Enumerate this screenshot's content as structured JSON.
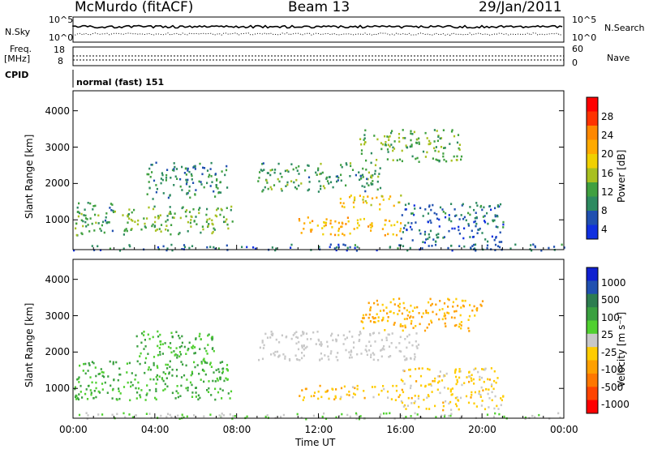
{
  "header": {
    "station": "McMurdo (fitACF)",
    "beam": "Beam 13",
    "date": "29/Jan/2011"
  },
  "side_labels": {
    "nsky": "N.Sky",
    "nsky_ticks": [
      "10^5",
      "10^0"
    ],
    "nsearch": "N.Search",
    "nsearch_ticks": [
      "10^5",
      "10^0"
    ],
    "freq": "Freq.",
    "freq_unit": "[MHz]",
    "freq_ticks": [
      "18",
      "8"
    ],
    "nave": "Nave",
    "nave_ticks": [
      "60",
      "0"
    ],
    "cpid": "CPID",
    "cpid_value": "normal (fast) 151"
  },
  "axes": {
    "y_label": "Slant Range [km]",
    "y_ticks": [
      "4000",
      "3000",
      "2000",
      "1000"
    ],
    "x_label": "Time UT",
    "x_ticks": [
      "00:00",
      "04:00",
      "08:00",
      "12:00",
      "16:00",
      "20:00",
      "00:00"
    ]
  },
  "colorbars": {
    "power": {
      "label": "Power [dB]",
      "ticks": [
        "28",
        "24",
        "20",
        "16",
        "12",
        "8",
        "4"
      ],
      "colors": [
        "#ff0000",
        "#ff3300",
        "#ff8800",
        "#ffaa00",
        "#f0d000",
        "#a8c020",
        "#40a040",
        "#2d8a60",
        "#2050b0",
        "#1030e0"
      ]
    },
    "velocity": {
      "label": "Velocity [m s⁻¹]",
      "ticks": [
        "1000",
        "500",
        "100",
        "25",
        "-25",
        "-100",
        "-500",
        "-1000"
      ],
      "colors": [
        "#1020d0",
        "#2050b0",
        "#2d7d50",
        "#3aa040",
        "#50d030",
        "#c8c8c8",
        "#ffcc00",
        "#ffa000",
        "#ff7700",
        "#ff4400",
        "#ff0000"
      ]
    }
  },
  "chart_data": [
    {
      "type": "heatmap",
      "title": "Power [dB]",
      "xlabel": "Time UT",
      "ylabel": "Slant Range [km]",
      "x_range": [
        "00:00",
        "24:00"
      ],
      "ylim": [
        180,
        4550
      ],
      "color_range": [
        0,
        32
      ],
      "regions": [
        {
          "t0": 0.0,
          "t1": 2.5,
          "r0": 600,
          "r1": 1500,
          "value": 10
        },
        {
          "t0": 2.5,
          "t1": 7.8,
          "r0": 600,
          "r1": 1400,
          "value": 12
        },
        {
          "t0": 3.5,
          "t1": 7.5,
          "r0": 1600,
          "r1": 2600,
          "value": 8
        },
        {
          "t0": 9.0,
          "t1": 15.0,
          "r0": 1800,
          "r1": 2600,
          "value": 10
        },
        {
          "t0": 11.0,
          "t1": 16.0,
          "r0": 600,
          "r1": 1100,
          "value": 20
        },
        {
          "t0": 13.0,
          "t1": 16.0,
          "r0": 1300,
          "r1": 1700,
          "value": 18
        },
        {
          "t0": 14.0,
          "t1": 19.0,
          "r0": 2600,
          "r1": 3500,
          "value": 12
        },
        {
          "t0": 16.0,
          "t1": 21.0,
          "r0": 400,
          "r1": 1500,
          "value": 6
        },
        {
          "t0": 0.0,
          "t1": 24.0,
          "r0": 180,
          "r1": 350,
          "value": 6
        }
      ]
    },
    {
      "type": "heatmap",
      "title": "Velocity [m s⁻¹]",
      "xlabel": "Time UT",
      "ylabel": "Slant Range [km]",
      "x_range": [
        "00:00",
        "24:00"
      ],
      "ylim": [
        180,
        4550
      ],
      "color_range": [
        -1000,
        1000
      ],
      "regions": [
        {
          "t0": 0.0,
          "t1": 7.8,
          "r0": 700,
          "r1": 1800,
          "value": 300
        },
        {
          "t0": 3.0,
          "t1": 7.0,
          "r0": 1800,
          "r1": 2600,
          "value": 300
        },
        {
          "t0": 9.0,
          "t1": 17.0,
          "r0": 1800,
          "r1": 2600,
          "value": 0
        },
        {
          "t0": 11.0,
          "t1": 16.0,
          "r0": 700,
          "r1": 1100,
          "value": -200
        },
        {
          "t0": 14.0,
          "t1": 20.0,
          "r0": 2600,
          "r1": 3500,
          "value": -300
        },
        {
          "t0": 16.0,
          "t1": 21.0,
          "r0": 400,
          "r1": 1600,
          "value": -150
        },
        {
          "t0": 0.0,
          "t1": 24.0,
          "r0": 180,
          "r1": 350,
          "value": 60
        }
      ]
    }
  ]
}
